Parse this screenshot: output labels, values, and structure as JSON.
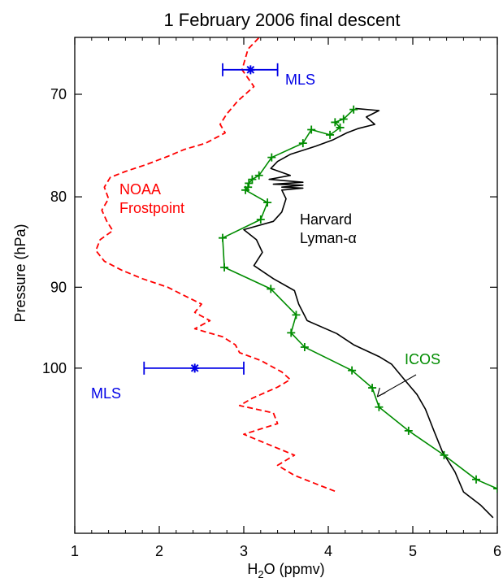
{
  "chart_data": {
    "type": "line",
    "title": "1 February 2006 final descent",
    "xlabel_main": "H",
    "xlabel_sub": "2",
    "xlabel_rest": "O (ppmv)",
    "ylabel": "Pressure (hPa)",
    "xlim": [
      1,
      6
    ],
    "ylim": [
      124,
      65
    ],
    "y_scale": "log",
    "x_ticks": [
      1,
      2,
      3,
      4,
      5,
      6
    ],
    "x_tick_labels": [
      "1",
      "2",
      "3",
      "4",
      "5",
      "6"
    ],
    "y_ticks": [
      70,
      80,
      90,
      100
    ],
    "y_tick_labels": [
      "70",
      "80",
      "90",
      "100"
    ],
    "colors": {
      "noaa": "#ff0000",
      "harvard": "#000000",
      "icos": "#008c00",
      "mls": "#0000e6"
    },
    "annotations": {
      "noaa_line1": "NOAA",
      "noaa_line2": "Frostpoint",
      "harvard_line1": "Harvard",
      "harvard_line2": "Lyman-α",
      "icos": "ICOS",
      "mls_upper": "MLS",
      "mls_lower": "MLS"
    },
    "series": [
      {
        "name": "NOAA Frostpoint",
        "style": "dashed",
        "points": [
          [
            3.25,
            64.5
          ],
          [
            3.05,
            66.0
          ],
          [
            2.98,
            67.8
          ],
          [
            3.12,
            69.3
          ],
          [
            2.93,
            70.6
          ],
          [
            2.8,
            71.8
          ],
          [
            2.72,
            72.8
          ],
          [
            2.78,
            73.6
          ],
          [
            2.55,
            74.6
          ],
          [
            2.3,
            75.2
          ],
          [
            2.1,
            75.9
          ],
          [
            1.85,
            76.7
          ],
          [
            1.6,
            77.4
          ],
          [
            1.42,
            78.0
          ],
          [
            1.35,
            79.0
          ],
          [
            1.4,
            80.2
          ],
          [
            1.32,
            81.4
          ],
          [
            1.38,
            82.6
          ],
          [
            1.45,
            83.6
          ],
          [
            1.3,
            84.6
          ],
          [
            1.25,
            85.8
          ],
          [
            1.35,
            87.0
          ],
          [
            1.55,
            88.0
          ],
          [
            1.8,
            89.0
          ],
          [
            2.1,
            90.0
          ],
          [
            2.3,
            91.0
          ],
          [
            2.5,
            92.0
          ],
          [
            2.42,
            93.0
          ],
          [
            2.6,
            94.0
          ],
          [
            2.42,
            95.0
          ],
          [
            2.75,
            96.0
          ],
          [
            2.9,
            97.0
          ],
          [
            2.95,
            98.0
          ],
          [
            3.2,
            99.0
          ],
          [
            3.45,
            100.5
          ],
          [
            3.55,
            101.5
          ],
          [
            3.4,
            102.5
          ],
          [
            3.1,
            104.0
          ],
          [
            2.95,
            105.0
          ],
          [
            3.35,
            106.0
          ],
          [
            3.4,
            107.5
          ],
          [
            3.0,
            109.0
          ],
          [
            3.3,
            110.5
          ],
          [
            3.6,
            112.0
          ],
          [
            3.4,
            113.5
          ],
          [
            3.6,
            115.0
          ],
          [
            3.9,
            116.5
          ],
          [
            4.1,
            117.5
          ]
        ]
      },
      {
        "name": "Harvard Lyman-α",
        "style": "solid",
        "points": [
          [
            4.32,
            71.3
          ],
          [
            4.6,
            71.5
          ],
          [
            4.45,
            72.1
          ],
          [
            4.55,
            72.8
          ],
          [
            4.35,
            73.2
          ],
          [
            4.22,
            73.6
          ],
          [
            4.05,
            74.3
          ],
          [
            3.85,
            74.9
          ],
          [
            3.55,
            75.7
          ],
          [
            3.4,
            76.4
          ],
          [
            3.32,
            77.1
          ],
          [
            3.55,
            77.8
          ],
          [
            3.3,
            78.2
          ],
          [
            3.7,
            78.5
          ],
          [
            3.35,
            78.7
          ],
          [
            3.7,
            78.8
          ],
          [
            3.45,
            79.0
          ],
          [
            3.7,
            79.1
          ],
          [
            3.45,
            79.3
          ],
          [
            3.5,
            80.2
          ],
          [
            3.45,
            81.6
          ],
          [
            3.35,
            82.6
          ],
          [
            3.0,
            83.5
          ],
          [
            3.15,
            84.6
          ],
          [
            3.22,
            86.0
          ],
          [
            3.12,
            87.5
          ],
          [
            3.35,
            89.0
          ],
          [
            3.6,
            90.4
          ],
          [
            3.65,
            92.0
          ],
          [
            3.75,
            94.0
          ],
          [
            4.1,
            95.6
          ],
          [
            4.3,
            97.0
          ],
          [
            4.6,
            98.5
          ],
          [
            4.75,
            99.5
          ],
          [
            4.9,
            101.5
          ],
          [
            5.05,
            103.5
          ],
          [
            5.15,
            105.5
          ],
          [
            5.25,
            108.5
          ],
          [
            5.35,
            111.5
          ],
          [
            5.5,
            114.5
          ],
          [
            5.6,
            117.5
          ],
          [
            5.8,
            119.5
          ],
          [
            5.95,
            121.5
          ]
        ]
      },
      {
        "name": "ICOS",
        "style": "solid-markers",
        "points": [
          [
            4.3,
            71.4
          ],
          [
            4.18,
            72.3
          ],
          [
            4.08,
            72.6
          ],
          [
            4.14,
            73.1
          ],
          [
            4.02,
            73.8
          ],
          [
            3.8,
            73.3
          ],
          [
            3.7,
            74.6
          ],
          [
            3.33,
            76.0
          ],
          [
            3.18,
            77.8
          ],
          [
            3.1,
            78.2
          ],
          [
            3.06,
            78.6
          ],
          [
            3.05,
            79.0
          ],
          [
            3.02,
            79.3
          ],
          [
            3.28,
            80.6
          ],
          [
            3.2,
            82.4
          ],
          [
            2.75,
            84.4
          ],
          [
            2.77,
            87.7
          ],
          [
            3.32,
            90.2
          ],
          [
            3.62,
            93.3
          ],
          [
            3.56,
            95.5
          ],
          [
            3.72,
            97.3
          ],
          [
            4.28,
            100.3
          ],
          [
            4.52,
            102.6
          ],
          [
            4.6,
            105.2
          ],
          [
            4.95,
            108.5
          ],
          [
            5.37,
            112.0
          ],
          [
            5.75,
            115.6
          ],
          [
            6.0,
            117.0
          ]
        ]
      }
    ],
    "mls_points": [
      {
        "name": "MLS",
        "x": 3.08,
        "y": 67.8,
        "xerr_low": 2.75,
        "xerr_high": 3.4
      },
      {
        "name": "MLS",
        "x": 2.42,
        "y": 100.0,
        "xerr_low": 1.82,
        "xerr_high": 3.0
      }
    ],
    "grid": false,
    "legend": "none"
  }
}
